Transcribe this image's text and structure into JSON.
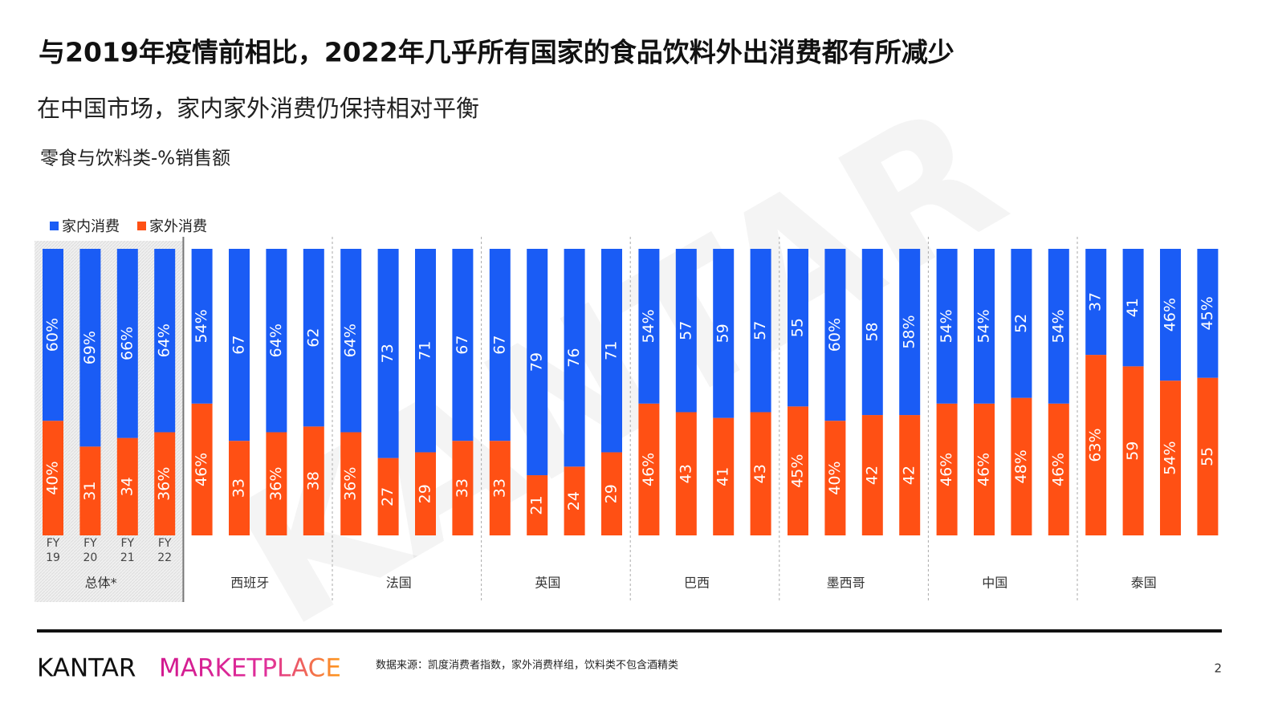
{
  "title": "与2019年疫情前相比，2022年几乎所有国家的食品饮料外出消费都有所减少",
  "subtitle": "在中国市场，家内家外消费仍保持相对平衡",
  "chart_data": {
    "type": "bar",
    "stacked": true,
    "y_label": "零食与饮料类-%销售额",
    "watermark": "KANTAR",
    "legend": "top-left",
    "ylim": [
      0,
      100
    ],
    "groups": [
      "总体*",
      "西班牙",
      "法国",
      "英国",
      "巴西",
      "墨西哥",
      "中国",
      "泰国"
    ],
    "categories": [
      "FY 19",
      "FY 20",
      "FY 21",
      "FY 22",
      null,
      null,
      null,
      null,
      null,
      null,
      null,
      null,
      null,
      null,
      null,
      null,
      null,
      null,
      null,
      null,
      null,
      null,
      null,
      null,
      null,
      null,
      null,
      null,
      null,
      null,
      null,
      null
    ],
    "series": [
      {
        "name": "家外消费",
        "color": "#ff5014",
        "values": [
          40,
          31,
          34,
          36,
          46,
          33,
          36,
          38,
          36,
          27,
          29,
          33,
          33,
          21,
          24,
          29,
          46,
          43,
          41,
          43,
          45,
          40,
          42,
          42,
          46,
          46,
          48,
          46,
          63,
          59,
          54,
          55
        ],
        "value_labels": [
          "40%",
          "31",
          "34",
          "36%",
          "46%",
          "33",
          "36%",
          "38",
          "36%",
          "27",
          "29",
          "33",
          "33",
          "21",
          "24",
          "29",
          "46%",
          "43",
          "41",
          "43",
          "45%",
          "40%",
          "42",
          "42",
          "46%",
          "46%",
          "48%",
          "46%",
          "63%",
          "59",
          "54%",
          "55"
        ]
      },
      {
        "name": "家内消费",
        "color": "#1a5cf5",
        "values": [
          60,
          69,
          66,
          64,
          54,
          67,
          64,
          62,
          64,
          73,
          71,
          67,
          67,
          79,
          76,
          71,
          54,
          57,
          59,
          57,
          55,
          60,
          58,
          58,
          54,
          54,
          52,
          54,
          37,
          41,
          46,
          45
        ],
        "value_labels": [
          "60%",
          "69%",
          "66%",
          "64%",
          "54%",
          "67",
          "64%",
          "62",
          "64%",
          "73",
          "71",
          "67",
          "67",
          "79",
          "76",
          "71",
          "54%",
          "57",
          "59",
          "57",
          "55",
          "60%",
          "58",
          "58%",
          "54%",
          "54%",
          "52",
          "54%",
          "37",
          "41",
          "46%",
          "45%"
        ]
      }
    ]
  },
  "footer": {
    "brand": "KANTAR",
    "product": "MARKETPLACE",
    "source": "数据来源：凯度消费者指数，家外消费样组，饮料类不包含酒精类",
    "page": "2"
  }
}
